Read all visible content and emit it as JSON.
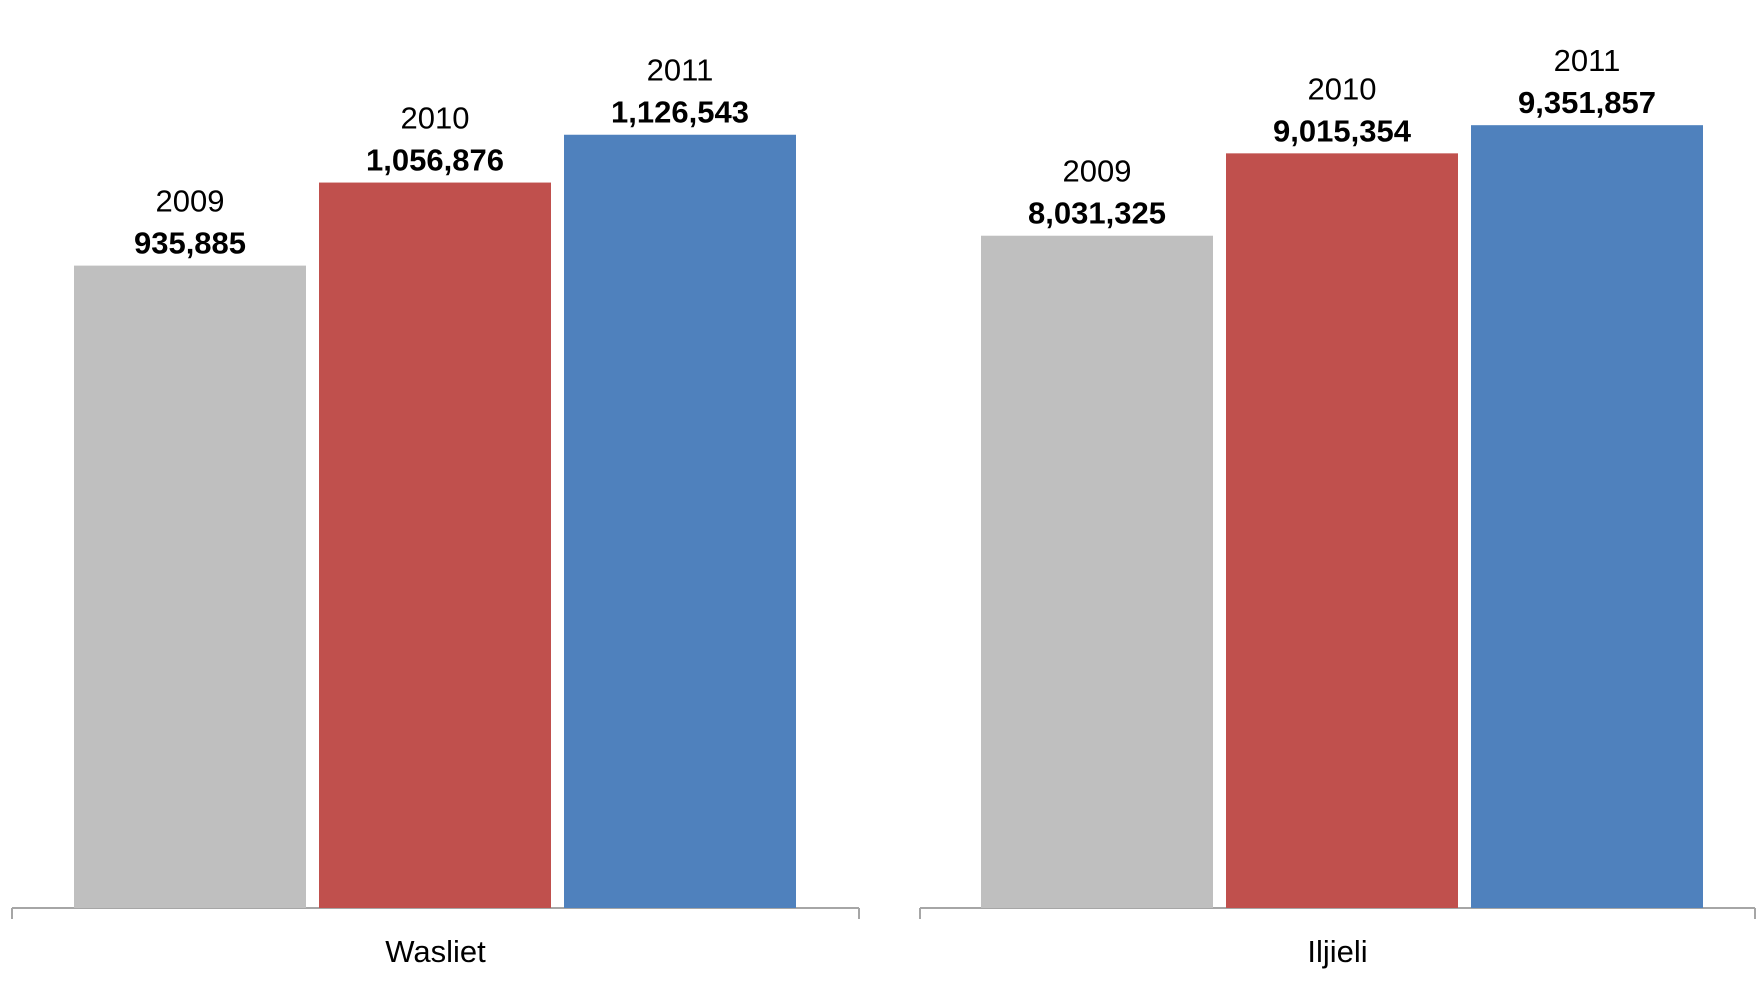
{
  "chart_data": [
    {
      "type": "bar",
      "categories": [
        "Wasliet"
      ],
      "series": [
        {
          "name": "2009",
          "values": [
            935885
          ],
          "color": "#bfbfbf"
        },
        {
          "name": "2010",
          "values": [
            1056876
          ],
          "color": "#c0504d"
        },
        {
          "name": "2011",
          "values": [
            1126543
          ],
          "color": "#4f81bd"
        }
      ],
      "value_labels": [
        "935,885",
        "1,056,876",
        "1,126,543"
      ],
      "ylim": [
        0,
        1250000
      ],
      "grid": false,
      "legend": "none"
    },
    {
      "type": "bar",
      "categories": [
        "Iljieli"
      ],
      "series": [
        {
          "name": "2009",
          "values": [
            8031325
          ],
          "color": "#bfbfbf"
        },
        {
          "name": "2010",
          "values": [
            9015354
          ],
          "color": "#c0504d"
        },
        {
          "name": "2011",
          "values": [
            9351857
          ],
          "color": "#4f81bd"
        }
      ],
      "value_labels": [
        "8,031,325",
        "9,015,354",
        "9,351,857"
      ],
      "ylim": [
        0,
        10250000
      ],
      "grid": false,
      "legend": "none"
    }
  ]
}
